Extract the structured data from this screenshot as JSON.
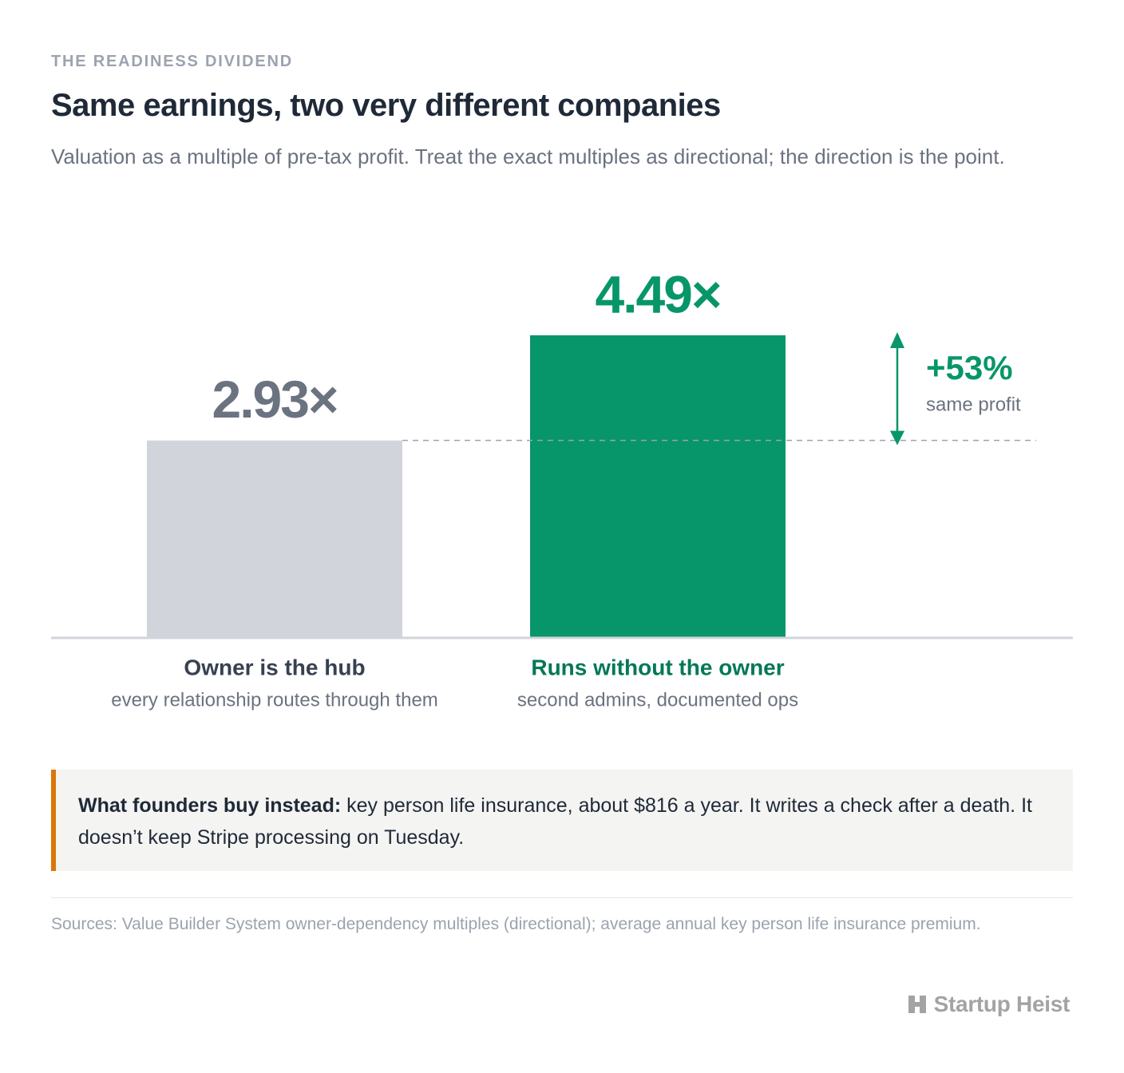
{
  "chart_data": {
    "type": "bar",
    "eyebrow": "THE READINESS DIVIDEND",
    "title": "Same earnings, two very different companies",
    "subtitle": "Valuation as a multiple of pre-tax profit. Treat the exact multiples as directional; the direction is the point.",
    "categories": [
      "Owner is the hub",
      "Runs without the owner"
    ],
    "category_notes": [
      "every relationship routes through them",
      "second admins, documented ops"
    ],
    "values": [
      2.93,
      4.49
    ],
    "value_labels": [
      "2.93×",
      "4.49×"
    ],
    "colors": [
      "#d1d5db",
      "#079669"
    ],
    "label_colors": [
      "#6b7280",
      "#079669"
    ],
    "category_colors": [
      "#374151",
      "#047857"
    ],
    "annotation": {
      "label": "+53%",
      "note": "same profit"
    },
    "callout": {
      "lead": "What founders buy instead:",
      "text": "key person life insurance, about $816 a year. It writes a check after a death. It doesn’t keep Stripe processing on Tuesday."
    },
    "sources": "Sources: Value Builder System owner-dependency multiples (directional); average annual key person life insurance premium.",
    "brand": "Startup Heist"
  }
}
